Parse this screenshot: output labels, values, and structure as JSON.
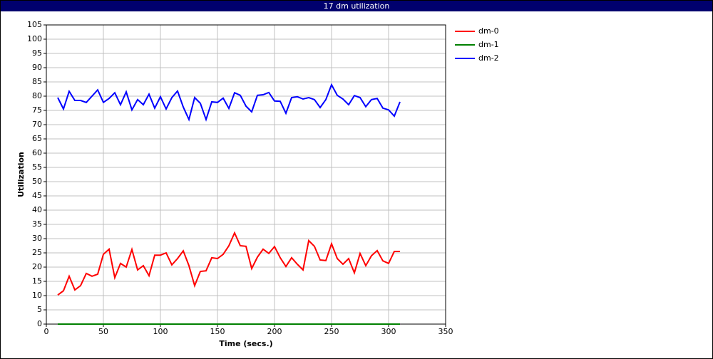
{
  "chart_data": {
    "type": "line",
    "title": "17 dm utilization",
    "x_label": "Time (secs.)",
    "y_label": "Utilization",
    "x": [
      10,
      15,
      20,
      25,
      30,
      35,
      40,
      45,
      50,
      55,
      60,
      65,
      70,
      75,
      80,
      85,
      90,
      95,
      100,
      105,
      110,
      115,
      120,
      125,
      130,
      135,
      140,
      145,
      150,
      155,
      160,
      165,
      170,
      175,
      180,
      185,
      190,
      195,
      200,
      205,
      210,
      215,
      220,
      225,
      230,
      235,
      240,
      245,
      250,
      255,
      260,
      265,
      270,
      275,
      280,
      285,
      290,
      295,
      300,
      305,
      310
    ],
    "series": [
      {
        "name": "dm-0",
        "color": "#ff0000",
        "values": [
          10.2,
          11.7,
          16.8,
          12,
          13.5,
          17.8,
          16.8,
          17.5,
          24.5,
          26.3,
          16.3,
          21.3,
          20,
          26.2,
          19,
          20.5,
          17,
          24.2,
          24.2,
          25,
          20.8,
          23,
          25.7,
          20.5,
          13.5,
          18.5,
          18.7,
          23.3,
          23,
          24.5,
          27.5,
          32,
          27.5,
          27.3,
          19.5,
          23.5,
          26.3,
          24.8,
          27.2,
          23.3,
          20.2,
          23.3,
          21,
          19,
          29.3,
          27.3,
          22.5,
          22.3,
          28.2,
          23,
          21,
          23,
          18,
          24.8,
          20.5,
          24,
          25.8,
          22.2,
          21.3,
          25.5,
          25.5
        ]
      },
      {
        "name": "dm-1",
        "color": "#008000",
        "values": [
          0,
          0,
          0,
          0,
          0,
          0,
          0,
          0,
          0,
          0,
          0,
          0,
          0,
          0,
          0,
          0,
          0,
          0,
          0,
          0,
          0,
          0,
          0,
          0,
          0,
          0,
          0,
          0,
          0,
          0,
          0,
          0,
          0,
          0,
          0,
          0,
          0,
          0,
          0,
          0,
          0,
          0,
          0,
          0,
          0,
          0,
          0,
          0,
          0,
          0,
          0,
          0,
          0,
          0,
          0,
          0,
          0,
          0,
          0,
          0,
          0
        ]
      },
      {
        "name": "dm-2",
        "color": "#0000ff",
        "values": [
          79.5,
          75.5,
          81.7,
          78.5,
          78.5,
          77.8,
          80,
          82.2,
          77.8,
          79.2,
          81.2,
          77,
          81.5,
          75.2,
          78.8,
          77,
          80.7,
          75.8,
          79.8,
          75.5,
          79.5,
          81.8,
          76.2,
          71.8,
          79.5,
          77.5,
          71.8,
          78,
          77.8,
          79.3,
          75.7,
          81.2,
          80.3,
          76.5,
          74.5,
          80.3,
          80.5,
          81.3,
          78.3,
          78.2,
          74,
          79.5,
          79.8,
          79,
          79.5,
          78.8,
          76,
          78.8,
          84,
          80.3,
          79,
          77,
          80.2,
          79.5,
          76.3,
          78.8,
          79.2,
          75.8,
          75.2,
          73,
          78
        ]
      }
    ],
    "xlim": [
      0,
      350
    ],
    "xticks": [
      0,
      50,
      100,
      150,
      200,
      250,
      300,
      350
    ],
    "ylim": [
      0,
      105
    ],
    "yticks": [
      0,
      5,
      10,
      15,
      20,
      25,
      30,
      35,
      40,
      45,
      50,
      55,
      60,
      65,
      70,
      75,
      80,
      85,
      90,
      95,
      100,
      105
    ],
    "grid": true,
    "legend": "right"
  }
}
